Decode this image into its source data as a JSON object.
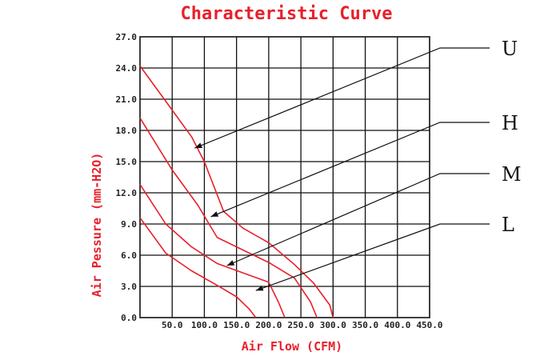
{
  "chart_data": {
    "type": "line",
    "title": "Characteristic Curve",
    "xlabel": "Air Flow (CFM)",
    "ylabel": "Air Pessure (mm-H2O)",
    "xlim": [
      0,
      450
    ],
    "ylim": [
      0,
      27
    ],
    "x_tick_step": 50,
    "y_tick_step": 3,
    "x_tick_labels": [
      "50.0",
      "100.0",
      "150.0",
      "200.0",
      "250.0",
      "300.0",
      "350.0",
      "400.0",
      "450.0"
    ],
    "y_tick_labels": [
      "0.0",
      "3.0",
      "6.0",
      "9.0",
      "12.0",
      "15.0",
      "18.0",
      "21.0",
      "24.0",
      "27.0"
    ],
    "grid": true,
    "line_color": "#e8202a",
    "series": [
      {
        "name": "U",
        "points": [
          [
            0,
            24.2
          ],
          [
            40,
            20.8
          ],
          [
            80,
            17.4
          ],
          [
            100,
            15.0
          ],
          [
            130,
            10.2
          ],
          [
            160,
            8.6
          ],
          [
            200,
            7.2
          ],
          [
            240,
            5.1
          ],
          [
            270,
            3.3
          ],
          [
            295,
            1.2
          ],
          [
            300,
            0
          ]
        ]
      },
      {
        "name": "H",
        "points": [
          [
            0,
            19.2
          ],
          [
            50,
            14.2
          ],
          [
            90,
            10.8
          ],
          [
            120,
            7.7
          ],
          [
            160,
            6.5
          ],
          [
            200,
            5.3
          ],
          [
            240,
            3.8
          ],
          [
            265,
            1.5
          ],
          [
            275,
            0
          ]
        ]
      },
      {
        "name": "M",
        "points": [
          [
            0,
            12.8
          ],
          [
            40,
            9.0
          ],
          [
            80,
            6.8
          ],
          [
            120,
            5.2
          ],
          [
            160,
            4.3
          ],
          [
            200,
            3.4
          ],
          [
            215,
            1.5
          ],
          [
            225,
            0
          ]
        ]
      },
      {
        "name": "L",
        "points": [
          [
            0,
            9.6
          ],
          [
            40,
            6.2
          ],
          [
            80,
            4.5
          ],
          [
            120,
            3.1
          ],
          [
            150,
            2.0
          ],
          [
            170,
            0.8
          ],
          [
            180,
            0
          ]
        ]
      }
    ],
    "leaders": [
      {
        "name": "U",
        "target": [
          85,
          16.3
        ]
      },
      {
        "name": "H",
        "target": [
          110,
          9.7
        ]
      },
      {
        "name": "M",
        "target": [
          135,
          5.0
        ]
      },
      {
        "name": "L",
        "target": [
          180,
          2.6
        ]
      }
    ]
  }
}
